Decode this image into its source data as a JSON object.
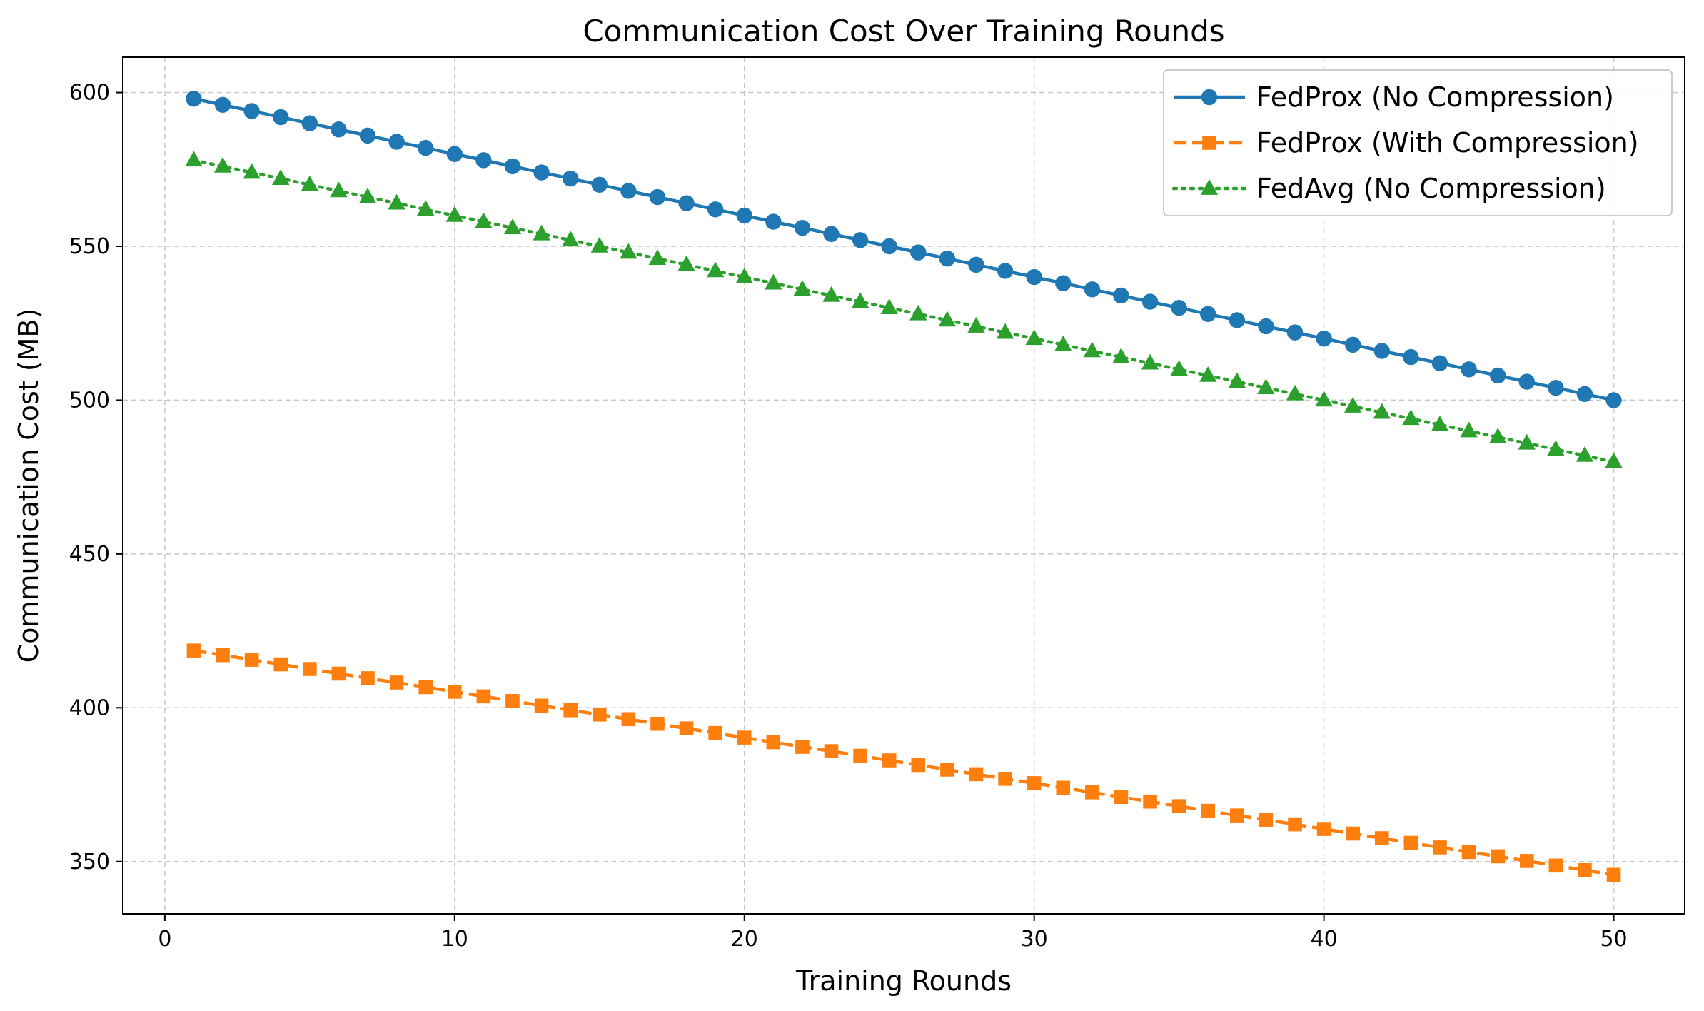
{
  "chart_data": {
    "type": "line",
    "title": "Communication Cost Over Training Rounds",
    "xlabel": "Training Rounds",
    "ylabel": "Communication Cost (MB)",
    "xlim": [
      -1.45,
      52.45
    ],
    "ylim": [
      333,
      611.5
    ],
    "xticks": [
      0,
      10,
      20,
      30,
      40,
      50
    ],
    "yticks": [
      350,
      400,
      450,
      500,
      550,
      600
    ],
    "grid": true,
    "legend_position": "top-right",
    "x": [
      1,
      2,
      3,
      4,
      5,
      6,
      7,
      8,
      9,
      10,
      11,
      12,
      13,
      14,
      15,
      16,
      17,
      18,
      19,
      20,
      21,
      22,
      23,
      24,
      25,
      26,
      27,
      28,
      29,
      30,
      31,
      32,
      33,
      34,
      35,
      36,
      37,
      38,
      39,
      40,
      41,
      42,
      43,
      44,
      45,
      46,
      47,
      48,
      49,
      50
    ],
    "series": [
      {
        "name": "FedProx (No Compression)",
        "color": "#1f77b4",
        "line_style": "solid",
        "marker": "circle",
        "values": [
          598,
          596,
          594,
          592,
          590,
          588,
          586,
          584,
          582,
          580,
          578,
          576,
          574,
          572,
          570,
          568,
          566,
          564,
          562,
          560,
          558,
          556,
          554,
          552,
          550,
          548,
          546,
          544,
          542,
          540,
          538,
          536,
          534,
          532,
          530,
          528,
          526,
          524,
          522,
          520,
          518,
          516,
          514,
          512,
          510,
          508,
          506,
          504,
          502,
          500
        ]
      },
      {
        "name": "FedProx (With Compression)",
        "color": "#ff7f0e",
        "line_style": "dashed",
        "marker": "square",
        "values": [
          418.6,
          417.1,
          415.6,
          414.1,
          412.6,
          411.1,
          409.6,
          408.2,
          406.7,
          405.2,
          403.7,
          402.2,
          400.7,
          399.2,
          397.8,
          396.3,
          394.8,
          393.3,
          391.8,
          390.3,
          388.8,
          387.3,
          385.9,
          384.4,
          382.9,
          381.4,
          379.9,
          378.4,
          376.9,
          375.5,
          374.0,
          372.5,
          371.0,
          369.5,
          368.0,
          366.5,
          365.0,
          363.6,
          362.1,
          360.6,
          359.1,
          357.6,
          356.1,
          354.6,
          353.1,
          351.7,
          350.2,
          348.7,
          347.2,
          345.7
        ]
      },
      {
        "name": "FedAvg (No Compression)",
        "color": "#2ca02c",
        "line_style": "dotted",
        "marker": "triangle",
        "values": [
          578,
          576,
          574,
          572,
          570,
          568,
          566,
          564,
          562,
          560,
          558,
          556,
          554,
          552,
          550,
          548,
          546,
          544,
          542,
          540,
          538,
          536,
          534,
          532,
          530,
          528,
          526,
          524,
          522,
          520,
          518,
          516,
          514,
          512,
          510,
          508,
          506,
          504,
          502,
          500,
          498,
          496,
          494,
          492,
          490,
          488,
          486,
          484,
          482,
          480
        ]
      }
    ]
  }
}
